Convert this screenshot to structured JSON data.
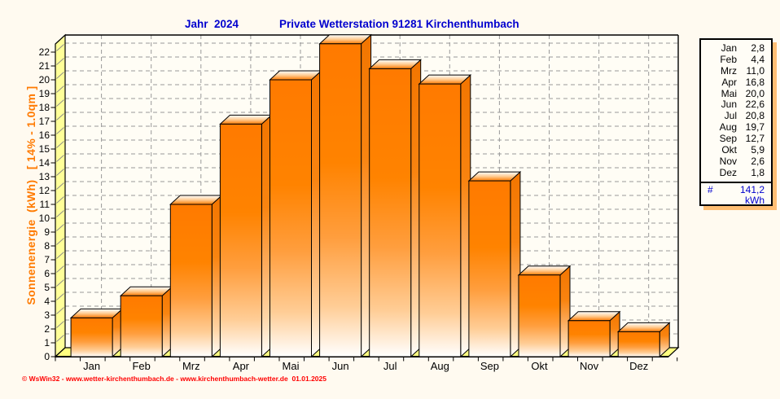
{
  "header": {
    "title_year": "Jahr  2024",
    "title_station": "Private Wetterstation 91281 Kirchenthumbach"
  },
  "chart_data": {
    "type": "bar",
    "style": "3d-bars",
    "title": "Jahr 2024 - Private Wetterstation 91281 Kirchenthumbach",
    "categories": [
      "Jan",
      "Feb",
      "Mrz",
      "Apr",
      "Mai",
      "Jun",
      "Jul",
      "Aug",
      "Sep",
      "Okt",
      "Nov",
      "Dez"
    ],
    "values": [
      2.8,
      4.4,
      11.0,
      16.8,
      20.0,
      22.6,
      20.8,
      19.7,
      12.7,
      5.9,
      2.6,
      1.8
    ],
    "series_name": "Sonnenenergie",
    "ylabel": "Sonnenenergie  (kWh)   [ 14% - 1.0qm ]",
    "xlabel": "",
    "ylim": [
      0,
      22
    ],
    "ytick_step": 1,
    "grid": true,
    "legend_position": "right",
    "total": 141.2,
    "unit": "kWh",
    "decimal_separator": ","
  },
  "legend": {
    "total_symbol": "#",
    "total_display": "141,2",
    "unit": "kWh"
  },
  "colors": {
    "title_blue": "#0000CE",
    "axis_label_orange": "#FF7A00",
    "bar_orange": "#FF7A00",
    "wall_yellow": "#FFFF99",
    "floor_yellow": "#FFFF80",
    "grid_gray": "#999999",
    "footer_red": "#FF0000"
  },
  "footer": {
    "copyright": "© WsWin32 - www.wetter-kirchenthumbach.de - www.kirchenthumbach-wetter.de  01.01.2025"
  }
}
